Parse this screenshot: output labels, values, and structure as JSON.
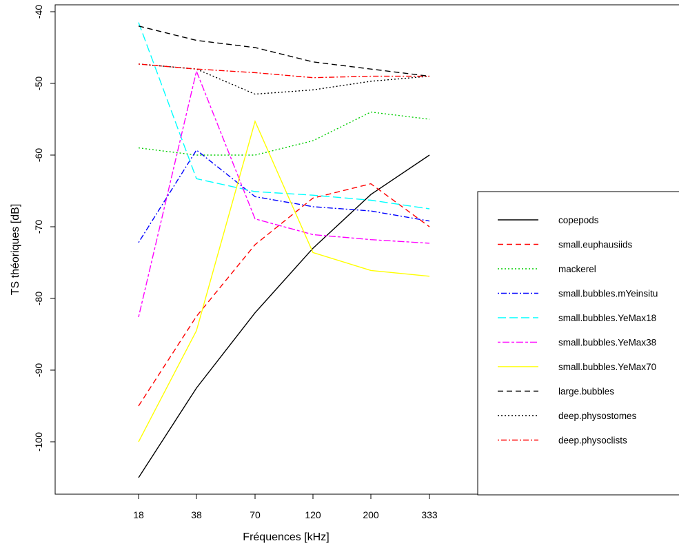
{
  "chart_data": {
    "type": "line",
    "xlabel": "Fréquences [kHz]",
    "ylabel": "TS théoriques [dB]",
    "categories": [
      "18",
      "38",
      "70",
      "120",
      "200",
      "333"
    ],
    "y_ticks": [
      -40,
      -50,
      -60,
      -70,
      -80,
      -90,
      -100
    ],
    "ylim": [
      -106,
      -38
    ],
    "grid": false,
    "legend_position": "right",
    "series": [
      {
        "name": "copepods",
        "color": "#000000",
        "dash": "solid",
        "values": [
          -105,
          -92.5,
          -82,
          -73,
          -65.5,
          -60
        ]
      },
      {
        "name": "small.euphausiids",
        "color": "#ff0000",
        "dash": "dashed",
        "values": [
          -95,
          -82.5,
          -72.5,
          -66,
          -64,
          -70
        ]
      },
      {
        "name": "mackerel",
        "color": "#00cd00",
        "dash": "dotted",
        "values": [
          -59,
          -60,
          -60,
          -58,
          -54,
          -55
        ]
      },
      {
        "name": "small.bubbles.mYeinsitu",
        "color": "#0000ff",
        "dash": "dotdash",
        "values": [
          -72.2,
          -59.3,
          -65.8,
          -67.2,
          -67.8,
          -69.2
        ]
      },
      {
        "name": "small.bubbles.YeMax18",
        "color": "#00ffff",
        "dash": "longdash",
        "values": [
          -41.5,
          -63.3,
          -65.1,
          -65.6,
          -66.3,
          -67.5
        ]
      },
      {
        "name": "small.bubbles.YeMax38",
        "color": "#ff00ff",
        "dash": "twodash",
        "values": [
          -82.6,
          -48.3,
          -68.9,
          -71.1,
          -71.8,
          -72.3
        ]
      },
      {
        "name": "small.bubbles.YeMax70",
        "color": "#ffff00",
        "dash": "solid",
        "values": [
          -100,
          -84.5,
          -55.3,
          -73.6,
          -76.1,
          -76.9
        ]
      },
      {
        "name": "large.bubbles",
        "color": "#000000",
        "dash": "dashed",
        "values": [
          -42,
          -44,
          -45,
          -47,
          -48,
          -49
        ]
      },
      {
        "name": "deep.physostomes",
        "color": "#000000",
        "dash": "dotted",
        "values": [
          -47.3,
          -48,
          -51.5,
          -50.9,
          -49.7,
          -49
        ]
      },
      {
        "name": "deep.physoclists",
        "color": "#ff0000",
        "dash": "dotdash",
        "values": [
          -47.3,
          -48,
          -48.5,
          -49.2,
          -49,
          -49
        ]
      }
    ]
  }
}
